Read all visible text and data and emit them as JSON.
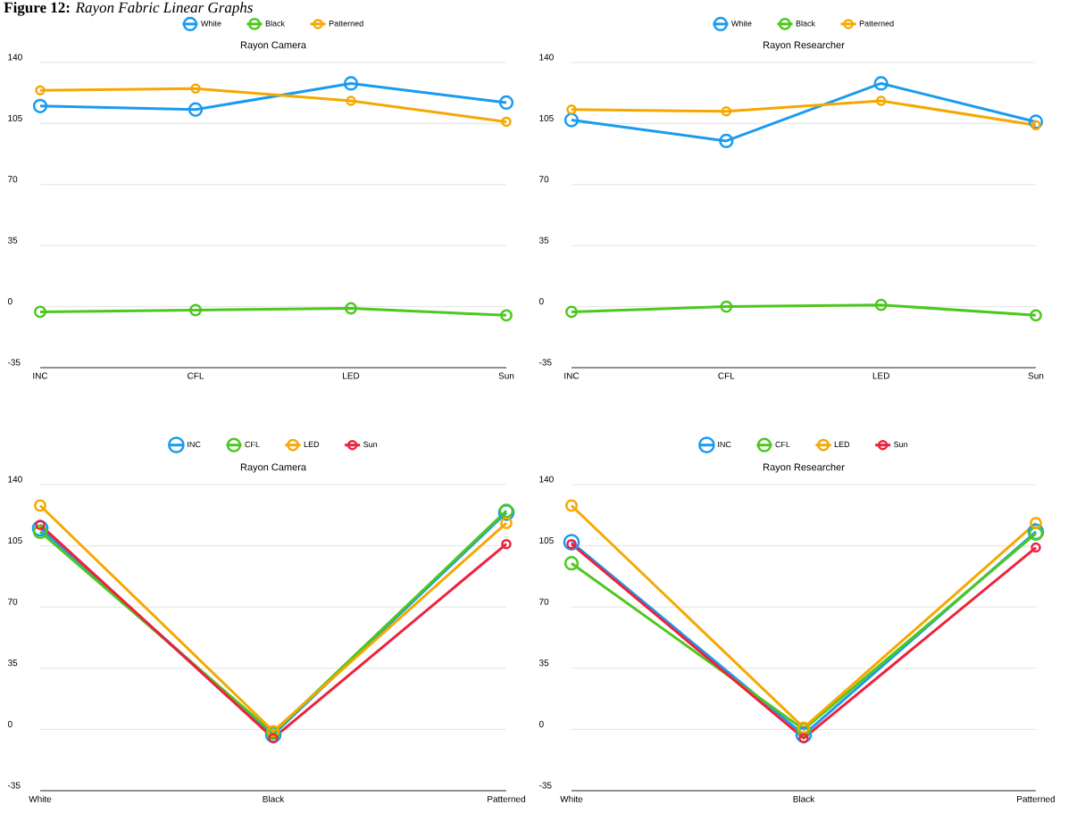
{
  "chart_data": [
    {
      "type": "line",
      "title": "Rayon Camera",
      "annotations": [
        "**Figure 12:** *Rayon Fabric Linear Graphs*"
      ],
      "categories": [
        "INC",
        "CFL",
        "LED",
        "Sun"
      ],
      "series": [
        {
          "name": "White",
          "color": "#1a9bf0",
          "values": [
            115,
            113,
            128,
            117
          ]
        },
        {
          "name": "Black",
          "color": "#4cc81e",
          "values": [
            -3,
            -2,
            -1,
            -5
          ]
        },
        {
          "name": "Patterned",
          "color": "#f5a800",
          "values": [
            124,
            125,
            118,
            106
          ]
        }
      ],
      "ylim": [
        -35,
        140
      ],
      "yticks": [
        -35,
        0,
        35,
        70,
        105,
        140
      ],
      "grid": "y",
      "legend": "top",
      "marker": "circle"
    },
    {
      "type": "line",
      "title": "Rayon Researcher",
      "categories": [
        "INC",
        "CFL",
        "LED",
        "Sun"
      ],
      "series": [
        {
          "name": "White",
          "color": "#1a9bf0",
          "values": [
            107,
            95,
            128,
            106
          ]
        },
        {
          "name": "Black",
          "color": "#4cc81e",
          "values": [
            -3,
            0,
            1,
            -5
          ]
        },
        {
          "name": "Patterned",
          "color": "#f5a800",
          "values": [
            113,
            112,
            118,
            104
          ]
        }
      ],
      "ylim": [
        -35,
        140
      ],
      "yticks": [
        -35,
        0,
        35,
        70,
        105,
        140
      ],
      "grid": "y",
      "legend": "top",
      "marker": "circle"
    },
    {
      "type": "line",
      "title": "Rayon Camera",
      "categories": [
        "White",
        "Black",
        "Patterned"
      ],
      "series": [
        {
          "name": "INC",
          "color": "#1a9bf0",
          "values": [
            115,
            -3,
            124
          ]
        },
        {
          "name": "CFL",
          "color": "#4cc81e",
          "values": [
            113,
            -2,
            125
          ]
        },
        {
          "name": "LED",
          "color": "#f5a800",
          "values": [
            128,
            -1,
            118
          ]
        },
        {
          "name": "Sun",
          "color": "#f0203a",
          "values": [
            117,
            -5,
            106
          ]
        }
      ],
      "ylim": [
        -35,
        140
      ],
      "yticks": [
        -35,
        0,
        35,
        70,
        105,
        140
      ],
      "grid": "y",
      "legend": "top",
      "marker": "circle"
    },
    {
      "type": "line",
      "title": "Rayon Researcher",
      "categories": [
        "White",
        "Black",
        "Patterned"
      ],
      "series": [
        {
          "name": "INC",
          "color": "#1a9bf0",
          "values": [
            107,
            -3,
            113
          ]
        },
        {
          "name": "CFL",
          "color": "#4cc81e",
          "values": [
            95,
            0,
            112
          ]
        },
        {
          "name": "LED",
          "color": "#f5a800",
          "values": [
            128,
            1,
            118
          ]
        },
        {
          "name": "Sun",
          "color": "#f0203a",
          "values": [
            106,
            -5,
            104
          ]
        }
      ],
      "ylim": [
        -35,
        140
      ],
      "yticks": [
        -35,
        0,
        35,
        70,
        105,
        140
      ],
      "grid": "y",
      "legend": "top",
      "marker": "circle"
    }
  ]
}
